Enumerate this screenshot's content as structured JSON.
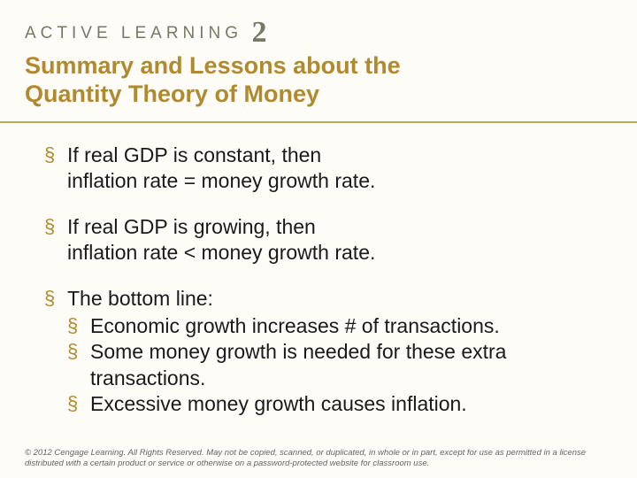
{
  "header": {
    "overline": "ACTIVE LEARNING",
    "number": "2",
    "title_line1": "Summary and Lessons about the",
    "title_line2": "Quantity Theory of Money"
  },
  "bullets": {
    "b1_l1": "If real GDP is constant, then",
    "b1_l2": "inflation rate = money growth rate.",
    "b2_l1": "If real GDP is growing, then",
    "b2_l2": "inflation rate < money growth rate.",
    "b3_l1": "The bottom line:",
    "b3_sub1": "Economic growth increases # of transactions.",
    "b3_sub2_l1": "Some money growth is needed for these extra",
    "b3_sub2_l2": "transactions.",
    "b3_sub3": "Excessive money growth causes inflation."
  },
  "footer": {
    "text": "© 2012 Cengage Learning. All Rights Reserved. May not be copied, scanned, or duplicated, in whole or in part, except for use as permitted in a license distributed with a certain product or service or otherwise on a password-protected website for classroom use."
  },
  "style": {
    "background_color": "#fdfcf7",
    "accent_color": "#b08a2e",
    "rule_color": "#c9a84a",
    "overline_color": "#7a7668",
    "text_color": "#1a1a1a",
    "title_fontsize": 27,
    "body_fontsize": 23,
    "overline_fontsize": 19,
    "number_fontsize": 34,
    "footer_fontsize": 9.5
  }
}
